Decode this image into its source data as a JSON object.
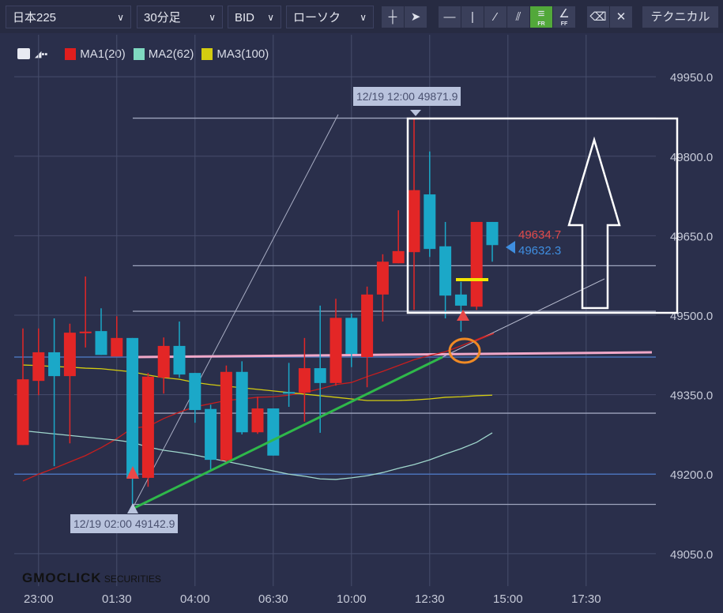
{
  "toolbar": {
    "symbol": "日本225",
    "timeframe": "30分足",
    "price_type": "BID",
    "chart_type": "ローソク",
    "tools": [
      {
        "icon": "crosshair-icon",
        "glyph": "┼"
      },
      {
        "icon": "cursor-icon",
        "glyph": "➤"
      },
      {
        "icon": "horizontal-line-icon",
        "glyph": "—"
      },
      {
        "icon": "vertical-line-icon",
        "glyph": "|"
      },
      {
        "icon": "trend-line-icon",
        "glyph": "⁄"
      },
      {
        "icon": "parallel-lines-icon",
        "glyph": "⫽"
      },
      {
        "icon": "fib-retracement-icon",
        "glyph": "≡",
        "sub": "FR",
        "active": true
      },
      {
        "icon": "fib-fan-icon",
        "glyph": "∠",
        "sub": "FF"
      },
      {
        "icon": "eraser-icon",
        "glyph": "⌫"
      },
      {
        "icon": "erase-all-icon",
        "glyph": "✕"
      }
    ],
    "technical": "テクニカル"
  },
  "legend": {
    "items": [
      {
        "label": "MA1(20)",
        "color": "#e01e1e"
      },
      {
        "label": "MA2(62)",
        "color": "#7fd9c0"
      },
      {
        "label": "MA3(100)",
        "color": "#d4cc10"
      }
    ]
  },
  "tooltips": {
    "high": "12/19 12:00 49871.9",
    "low": "12/19 02:00 49142.9"
  },
  "price_labels": {
    "ask": "49634.7",
    "bid": "49632.3"
  },
  "watermark": "GMOCLICK SECURITIES",
  "chart_data": {
    "type": "candlestick",
    "colors": {
      "up": "#e32626",
      "down": "#1ba8c8",
      "background": "#2a2f4b"
    },
    "ylim": [
      48990,
      50020
    ],
    "y_ticks": [
      "49950.0",
      "49800.0",
      "49650.0",
      "49500.0",
      "49350.0",
      "49200.0",
      "49050.0"
    ],
    "x_ticks": [
      {
        "label": "23:00",
        "candle": 1
      },
      {
        "label": "01:30",
        "candle": 6
      },
      {
        "label": "04:00",
        "candle": 11
      },
      {
        "label": "06:30",
        "candle": 16
      },
      {
        "label": "10:00",
        "candle": 21
      },
      {
        "label": "12:30",
        "candle": 26
      },
      {
        "label": "15:00",
        "candle": 31
      },
      {
        "label": "17:30",
        "candle": 36
      }
    ],
    "grid": true,
    "ohlc": [
      [
        49255,
        49475,
        49255,
        49379
      ],
      [
        49376,
        49475,
        49349,
        49430
      ],
      [
        49430,
        49494,
        49215,
        49385
      ],
      [
        49385,
        49484,
        49258,
        49467
      ],
      [
        49466,
        49573,
        49439,
        49469
      ],
      [
        49470,
        49513,
        49425,
        49425
      ],
      [
        49422,
        49498,
        49422,
        49457
      ],
      [
        49457,
        49457,
        49142.9,
        49193
      ],
      [
        49193,
        49391,
        49176,
        49384
      ],
      [
        49382,
        49458,
        49352,
        49442
      ],
      [
        49442,
        49488,
        49382,
        49388
      ],
      [
        49391,
        49391,
        49297,
        49321
      ],
      [
        49323,
        49331,
        49209,
        49227
      ],
      [
        49226,
        49405,
        49223,
        49393
      ],
      [
        49393,
        49413,
        49275,
        49279
      ],
      [
        49279,
        49346,
        49276,
        49324
      ],
      [
        49324,
        49324,
        49235,
        49235
      ],
      [
        49355,
        49410,
        49327,
        49352
      ],
      [
        49354,
        49457,
        49299,
        49400
      ],
      [
        49400,
        49518,
        49278,
        49372
      ],
      [
        49372,
        49531,
        49367,
        49495
      ],
      [
        49495,
        49503,
        49402,
        49427
      ],
      [
        49421,
        49554,
        49364,
        49539
      ],
      [
        49539,
        49615,
        49488,
        49601
      ],
      [
        49598,
        49698,
        49598,
        49621
      ],
      [
        49619,
        49871.9,
        49510,
        49736
      ],
      [
        49728,
        49809,
        49610,
        49625
      ],
      [
        49630,
        49676,
        49494,
        49537
      ],
      [
        49539,
        49563,
        49469,
        49518
      ],
      [
        49516,
        49676,
        49510,
        49676
      ],
      [
        49676,
        49676,
        49601,
        49632.3
      ]
    ],
    "series": [
      {
        "name": "MA1(20)",
        "color": "#c81e1e",
        "values": [
          49187,
          49200,
          49211,
          49223,
          49235,
          49250,
          49267,
          49287,
          49290,
          49305,
          49317,
          49327,
          49333,
          49339,
          49342,
          49345,
          49346,
          49349,
          49354,
          49361,
          49369,
          49373,
          49384,
          49394,
          49405,
          49416,
          49424,
          49431,
          49442,
          49454,
          49466
        ]
      },
      {
        "name": "MA2(62)",
        "color": "#9fd6cc",
        "values": [
          49282,
          49279,
          49276,
          49273,
          49270,
          49267,
          49264,
          49260,
          49251,
          49245,
          49241,
          49236,
          49230,
          49224,
          49218,
          49212,
          49206,
          49200,
          49196,
          49191,
          49190,
          49193,
          49197,
          49203,
          49211,
          49218,
          49227,
          49238,
          49248,
          49260,
          49278
        ]
      },
      {
        "name": "MA3(100)",
        "color": "#d4cc10",
        "values": [
          49406,
          49405,
          49403,
          49402,
          49400,
          49399,
          49396,
          49393,
          49387,
          49382,
          49379,
          49373,
          49369,
          49366,
          49363,
          49360,
          49357,
          49354,
          49351,
          49348,
          49345,
          49342,
          49339,
          49339,
          49339,
          49340,
          49342,
          49345,
          49346,
          49348,
          49349
        ]
      }
    ]
  }
}
